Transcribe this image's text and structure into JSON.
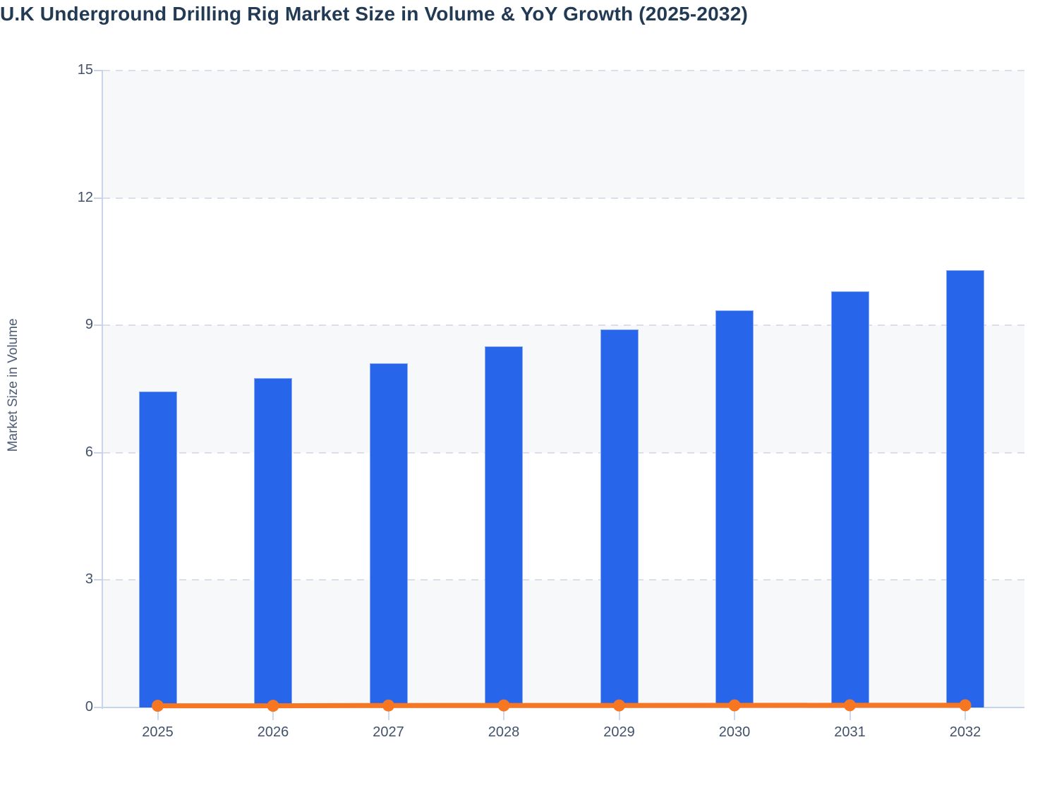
{
  "chart_data": {
    "type": "bar",
    "title": "U.K Underground Drilling Rig Market Size in Volume & YoY Growth (2025-2032)",
    "categories": [
      "2025",
      "2026",
      "2027",
      "2028",
      "2029",
      "2030",
      "2031",
      "2032"
    ],
    "series": [
      {
        "name": "Market Size in Volume",
        "type": "bar",
        "values": [
          7.45,
          7.75,
          8.1,
          8.5,
          8.9,
          9.35,
          9.8,
          10.3
        ]
      },
      {
        "name": "YoY Growth",
        "type": "line",
        "values": [
          0.04,
          0.04,
          0.047,
          0.048,
          0.048,
          0.05,
          0.051,
          0.051
        ]
      }
    ],
    "xlabel": "",
    "ylabel": "Market Size in Volume",
    "ylim": [
      0,
      15
    ],
    "yticks": [
      0,
      3,
      6,
      9,
      12,
      15
    ],
    "ytick_labels": [
      "0",
      "3",
      "6",
      "9",
      "12",
      "15"
    ],
    "grid": "horizontal-dashed",
    "legend_position": "none",
    "plot_band_fill_alternating": true
  },
  "colors": {
    "bar_fill": "#2765ea",
    "bar_border": "#8aabf2",
    "line": "#f67622",
    "marker": "#f67622",
    "title_text": "#233a54",
    "axis_text": "#42526b",
    "y_axis_title_text": "#4e5d75",
    "band_gray": "#f7f8fa",
    "band_white": "#ffffff",
    "grid_dash": "#dcdfe9",
    "axis_line": "#c9d4ea",
    "x_tick": "#ccd9f0"
  }
}
